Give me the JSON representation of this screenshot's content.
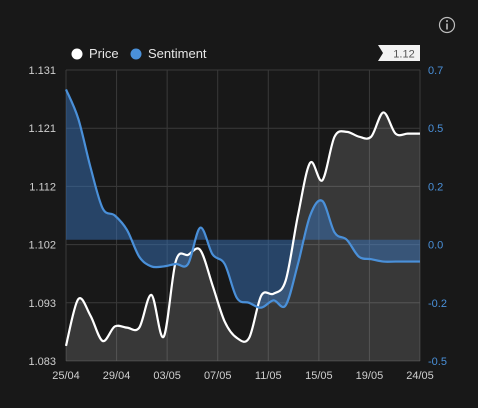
{
  "chart_data": {
    "type": "line",
    "x": [
      "25/04",
      "26/04",
      "27/04",
      "28/04",
      "29/04",
      "30/04",
      "01/05",
      "02/05",
      "03/05",
      "04/05",
      "05/05",
      "06/05",
      "07/05",
      "08/05",
      "09/05",
      "10/05",
      "11/05",
      "12/05",
      "13/05",
      "14/05",
      "15/05",
      "16/05",
      "17/05",
      "18/05",
      "19/05",
      "20/05",
      "21/05",
      "22/05",
      "23/05",
      "24/05"
    ],
    "xticks": [
      "25/04",
      "29/04",
      "03/05",
      "07/05",
      "11/05",
      "15/05",
      "19/05",
      "24/05"
    ],
    "series": [
      {
        "name": "Price",
        "axis": "left",
        "color": "#ffffff",
        "values": [
          1.0855,
          1.0932,
          1.0905,
          1.0863,
          1.0887,
          1.0885,
          1.0885,
          1.0939,
          1.087,
          1.0995,
          1.1005,
          1.1013,
          1.0955,
          1.0895,
          1.0868,
          1.0868,
          1.0938,
          1.0941,
          1.0963,
          1.107,
          1.1157,
          1.1128,
          1.12,
          1.1208,
          1.12,
          1.12,
          1.124,
          1.1205,
          1.1205,
          1.1205
        ]
      },
      {
        "name": "Sentiment",
        "axis": "right",
        "color": "#4a90d9",
        "values": [
          0.62,
          0.5,
          0.3,
          0.13,
          0.1,
          0.04,
          -0.07,
          -0.11,
          -0.11,
          -0.1,
          -0.1,
          0.05,
          -0.06,
          -0.1,
          -0.24,
          -0.26,
          -0.28,
          -0.25,
          -0.27,
          -0.1,
          0.1,
          0.16,
          0.03,
          0.0,
          -0.07,
          -0.08,
          -0.09,
          -0.09,
          -0.09,
          -0.09
        ]
      }
    ],
    "left_axis": {
      "ticks": [
        "1.131",
        "1.121",
        "1.112",
        "1.102",
        "1.093",
        "1.083"
      ],
      "range": [
        1.083,
        1.131
      ]
    },
    "right_axis": {
      "ticks": [
        "0.7",
        "0.5",
        "0.2",
        "0.0",
        "-0.2",
        "-0.5"
      ],
      "range": [
        -0.5,
        0.7
      ]
    },
    "current_value_label": "1.12",
    "legend": [
      {
        "label": "Price",
        "color": "#ffffff"
      },
      {
        "label": "Sentiment",
        "color": "#4a90d9"
      }
    ],
    "grid": true,
    "legend_position": "top-left"
  },
  "info_icon": "info-icon"
}
